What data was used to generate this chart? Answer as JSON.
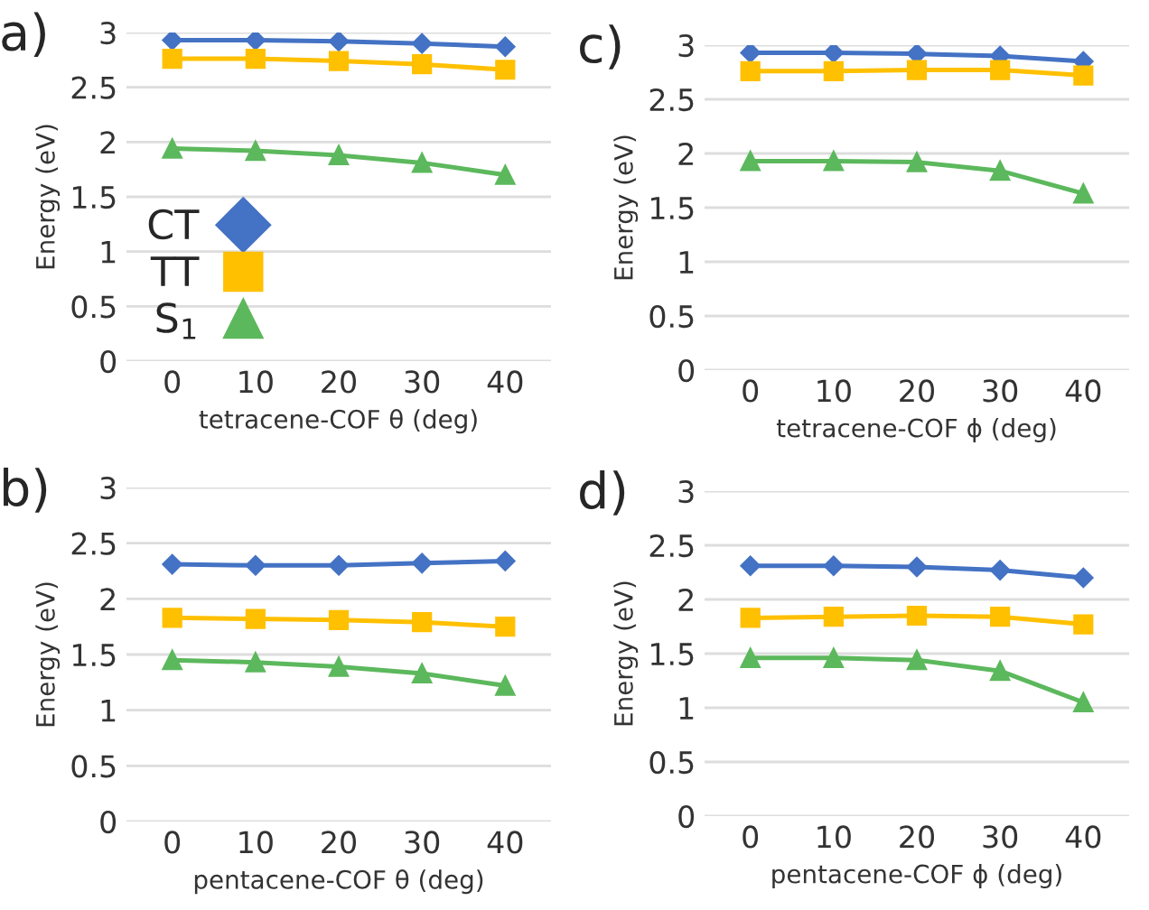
{
  "chart_data": [
    {
      "type": "line",
      "title": "a)",
      "xlabel": "tetracene-COF θ (deg)",
      "ylabel": "Energy (eV)",
      "categories": [
        "0",
        "10",
        "20",
        "30",
        "40"
      ],
      "ylim": [
        0,
        3
      ],
      "yticks": [
        0,
        0.5,
        1,
        1.5,
        2,
        2.5,
        3
      ],
      "grid": "y",
      "legend": "bottom left",
      "series": [
        {
          "name": "CT",
          "color": "#4472c4",
          "marker": "diamond",
          "values": [
            2.93,
            2.93,
            2.92,
            2.9,
            2.87
          ]
        },
        {
          "name": "TT",
          "color": "#ffc000",
          "marker": "square",
          "values": [
            2.76,
            2.76,
            2.74,
            2.71,
            2.66
          ]
        },
        {
          "name": "S$_{1}$",
          "color": "#5cb85c",
          "marker": "triangle",
          "values": [
            1.94,
            1.92,
            1.88,
            1.81,
            1.7
          ]
        }
      ]
    },
    {
      "type": "line",
      "title": "c)",
      "xlabel": "tetracene-COF ϕ (deg)",
      "ylabel": "Energy (eV)",
      "categories": [
        "0",
        "10",
        "20",
        "30",
        "40"
      ],
      "ylim": [
        0,
        3
      ],
      "yticks": [
        0,
        0.5,
        1,
        1.5,
        2,
        2.5,
        3
      ],
      "grid": "y",
      "series": [
        {
          "color": "#4472c4",
          "marker": "diamond",
          "values": [
            2.93,
            2.93,
            2.92,
            2.9,
            2.85
          ]
        },
        {
          "color": "#ffc000",
          "marker": "square",
          "values": [
            2.76,
            2.76,
            2.77,
            2.77,
            2.72
          ]
        },
        {
          "color": "#5cb85c",
          "marker": "triangle",
          "values": [
            1.93,
            1.93,
            1.92,
            1.84,
            1.63
          ]
        }
      ]
    },
    {
      "type": "line",
      "title": "b)",
      "xlabel": "pentacene-COF θ (deg)",
      "ylabel": "Energy (eV)",
      "categories": [
        "0",
        "10",
        "20",
        "30",
        "40"
      ],
      "ylim": [
        0,
        3
      ],
      "yticks": [
        0,
        0.5,
        1,
        1.5,
        2,
        2.5,
        3
      ],
      "grid": "y",
      "series": [
        {
          "color": "#4472c4",
          "marker": "diamond",
          "values": [
            2.31,
            2.3,
            2.3,
            2.32,
            2.34
          ]
        },
        {
          "color": "#ffc000",
          "marker": "square",
          "values": [
            1.83,
            1.82,
            1.81,
            1.79,
            1.75
          ]
        },
        {
          "color": "#5cb85c",
          "marker": "triangle",
          "values": [
            1.45,
            1.43,
            1.39,
            1.33,
            1.22
          ]
        }
      ]
    },
    {
      "type": "line",
      "title": "d)",
      "xlabel": "pentacene-COF ϕ (deg)",
      "ylabel": "Energy (eV)",
      "categories": [
        "0",
        "10",
        "20",
        "30",
        "40"
      ],
      "ylim": [
        0,
        3
      ],
      "yticks": [
        0,
        0.5,
        1,
        1.5,
        2,
        2.5,
        3
      ],
      "grid": "y",
      "series": [
        {
          "color": "#4472c4",
          "marker": "diamond",
          "values": [
            2.31,
            2.31,
            2.3,
            2.27,
            2.2
          ]
        },
        {
          "color": "#ffc000",
          "marker": "square",
          "values": [
            1.83,
            1.84,
            1.85,
            1.84,
            1.77
          ]
        },
        {
          "color": "#5cb85c",
          "marker": "triangle",
          "values": [
            1.46,
            1.46,
            1.44,
            1.34,
            1.05
          ]
        }
      ]
    }
  ]
}
